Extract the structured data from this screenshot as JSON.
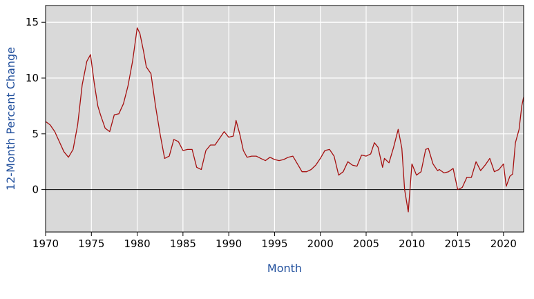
{
  "chart_data": {
    "type": "line",
    "xlabel": "Month",
    "ylabel": "12-Month Percent Change",
    "xlim": [
      1970,
      2022.2
    ],
    "ylim": [
      -3.8,
      16.5
    ],
    "x_ticks": [
      1970,
      1975,
      1980,
      1985,
      1990,
      1995,
      2000,
      2005,
      2010,
      2015,
      2020
    ],
    "y_ticks": [
      0,
      5,
      10,
      15
    ],
    "grid": true,
    "legend": "none",
    "reference_line": 0,
    "colors": {
      "plot_background": "#d9d9d9",
      "grid": "#ffffff",
      "line": "#a50f0f",
      "axis_title": "#1f4e9c",
      "zero_line": "#000000"
    },
    "series": [
      {
        "x": [
          1970.0,
          1970.5,
          1971.0,
          1971.5,
          1972.0,
          1972.5,
          1973.0,
          1973.5,
          1974.0,
          1974.5,
          1974.9,
          1975.3,
          1975.7,
          1976.0,
          1976.5,
          1977.0,
          1977.5,
          1978.0,
          1978.5,
          1979.0,
          1979.5,
          1980.0,
          1980.3,
          1980.7,
          1981.0,
          1981.5,
          1982.0,
          1982.5,
          1983.0,
          1983.5,
          1984.0,
          1984.5,
          1985.0,
          1985.5,
          1986.0,
          1986.5,
          1987.0,
          1987.5,
          1988.0,
          1988.5,
          1989.0,
          1989.5,
          1990.0,
          1990.5,
          1990.8,
          1991.2,
          1991.6,
          1992.0,
          1992.5,
          1993.0,
          1993.5,
          1994.0,
          1994.5,
          1995.0,
          1995.5,
          1996.0,
          1996.5,
          1997.0,
          1997.5,
          1998.0,
          1998.5,
          1999.0,
          1999.5,
          2000.0,
          2000.5,
          2001.0,
          2001.5,
          2002.0,
          2002.5,
          2003.0,
          2003.5,
          2004.0,
          2004.5,
          2005.0,
          2005.5,
          2005.9,
          2006.3,
          2006.8,
          2007.0,
          2007.5,
          2008.0,
          2008.5,
          2008.9,
          2009.2,
          2009.6,
          2010.0,
          2010.5,
          2011.0,
          2011.5,
          2011.8,
          2012.3,
          2012.8,
          2013.0,
          2013.5,
          2014.0,
          2014.5,
          2015.0,
          2015.5,
          2016.0,
          2016.5,
          2017.0,
          2017.5,
          2018.0,
          2018.5,
          2019.0,
          2019.5,
          2020.0,
          2020.3,
          2020.7,
          2021.0,
          2021.3,
          2021.7,
          2022.0,
          2022.2
        ],
        "values": [
          6.1,
          5.8,
          5.2,
          4.3,
          3.4,
          2.9,
          3.6,
          5.8,
          9.4,
          11.5,
          12.1,
          9.6,
          7.5,
          6.7,
          5.5,
          5.2,
          6.7,
          6.8,
          7.7,
          9.3,
          11.5,
          14.5,
          14.0,
          12.4,
          11.0,
          10.4,
          7.5,
          5.0,
          2.8,
          3.0,
          4.5,
          4.3,
          3.5,
          3.6,
          3.6,
          2.0,
          1.8,
          3.5,
          4.0,
          4.0,
          4.6,
          5.2,
          4.7,
          4.8,
          6.2,
          5.0,
          3.5,
          2.9,
          3.0,
          3.0,
          2.8,
          2.6,
          2.9,
          2.7,
          2.6,
          2.7,
          2.9,
          3.0,
          2.3,
          1.6,
          1.6,
          1.8,
          2.2,
          2.8,
          3.5,
          3.6,
          3.0,
          1.3,
          1.6,
          2.5,
          2.2,
          2.1,
          3.1,
          3.0,
          3.2,
          4.2,
          3.8,
          2.0,
          2.8,
          2.4,
          3.8,
          5.4,
          3.7,
          0.0,
          -2.0,
          2.3,
          1.3,
          1.6,
          3.6,
          3.7,
          2.3,
          1.7,
          1.8,
          1.5,
          1.6,
          1.9,
          0.0,
          0.2,
          1.1,
          1.1,
          2.5,
          1.7,
          2.2,
          2.8,
          1.6,
          1.8,
          2.3,
          0.3,
          1.2,
          1.4,
          4.2,
          5.4,
          7.5,
          8.3
        ]
      }
    ]
  }
}
